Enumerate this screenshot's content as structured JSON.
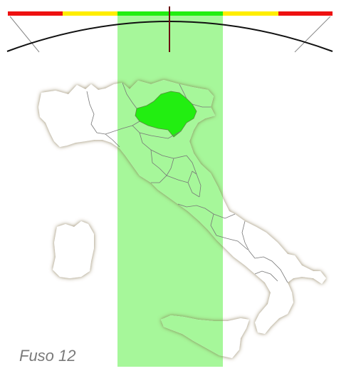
{
  "caption": "Fuso 12",
  "colors": {
    "zone_band": "#a6f79a",
    "highlight_region": "#22ee11",
    "land": "#ffffff",
    "land_in_zone": "#a6f79a",
    "coast_shadow": "#8a7a55",
    "border": "#777777",
    "bar_red": "#ee1111",
    "bar_yellow": "#ffee00",
    "bar_green": "#22ee11",
    "arc": "#111111",
    "meridian": "#6b1010"
  },
  "legend_bar": {
    "segments": [
      {
        "name": "outer-zone-left",
        "color": "#ee1111"
      },
      {
        "name": "near-zone-left",
        "color": "#ffee00"
      },
      {
        "name": "central-zone",
        "color": "#22ee11"
      },
      {
        "name": "near-zone-right",
        "color": "#ffee00"
      },
      {
        "name": "outer-zone-right",
        "color": "#ee1111"
      }
    ]
  },
  "highlighted_region_icon": "region-veneto",
  "map_icon": "italy-regions-map"
}
